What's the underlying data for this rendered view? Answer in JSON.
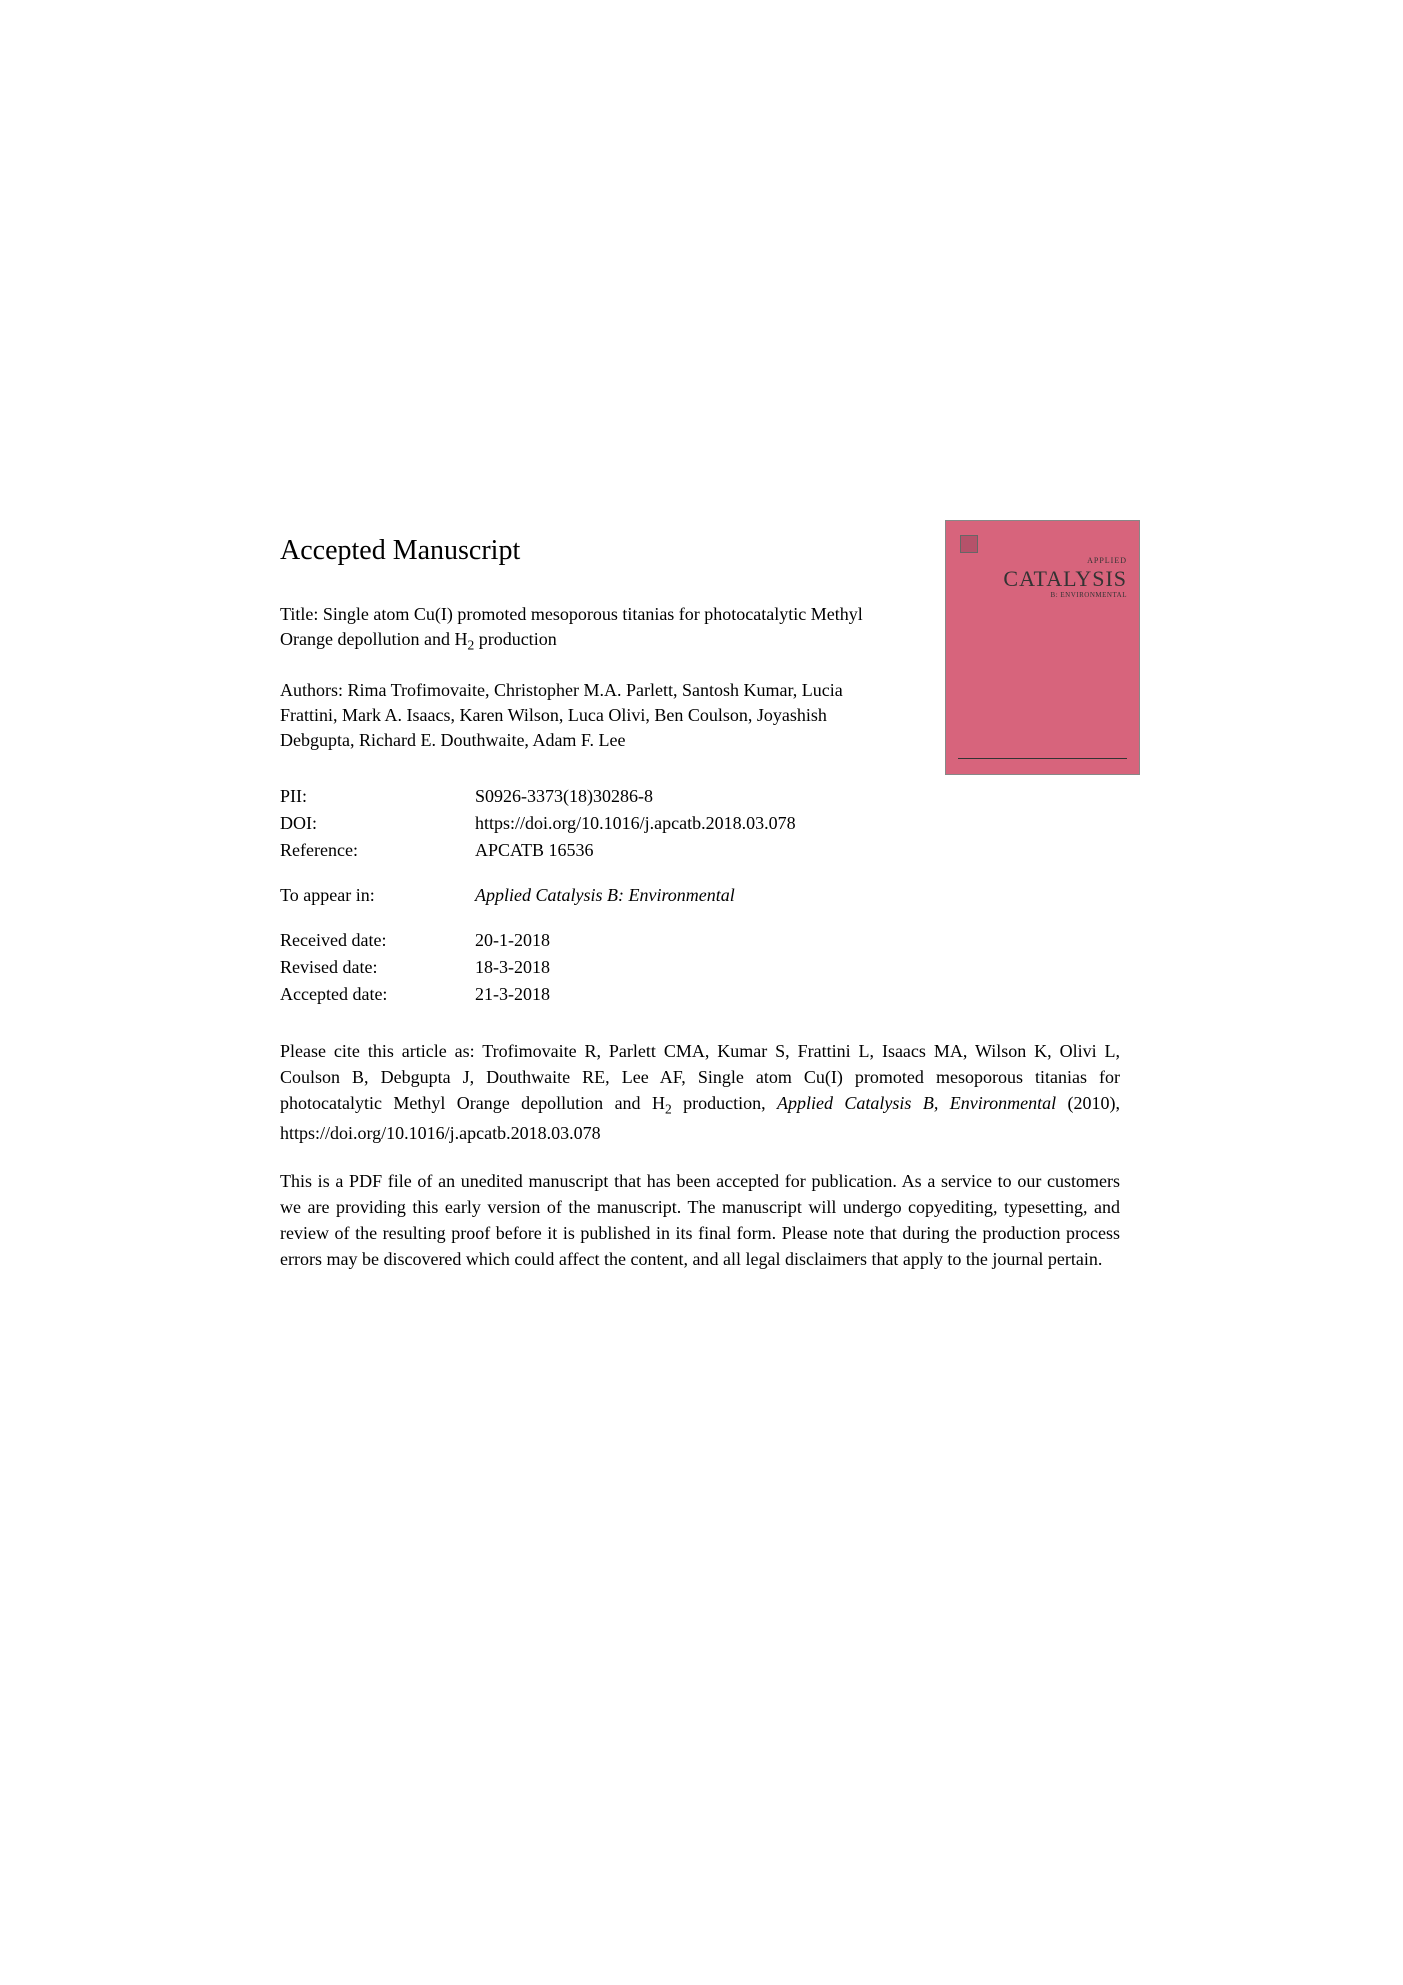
{
  "heading": "Accepted Manuscript",
  "title_label": "Title:",
  "title_text": "Single atom Cu(I) promoted mesoporous titanias for photocatalytic Methyl Orange depollution and H",
  "title_suffix": " production",
  "authors_label": "Authors:",
  "authors_text": "Rima Trofimovaite, Christopher M.A. Parlett, Santosh Kumar, Lucia Frattini, Mark A. Isaacs, Karen Wilson, Luca Olivi, Ben Coulson, Joyashish Debgupta, Richard E. Douthwaite, Adam F. Lee",
  "metadata": [
    {
      "label": "PII:",
      "value": "S0926-3373(18)30286-8"
    },
    {
      "label": "DOI:",
      "value": "https://doi.org/10.1016/j.apcatb.2018.03.078"
    },
    {
      "label": "Reference:",
      "value": "APCATB 16536"
    }
  ],
  "appear_label": "To appear in:",
  "appear_value": "Applied Catalysis B: Environmental",
  "dates": [
    {
      "label": "Received date:",
      "value": "20-1-2018"
    },
    {
      "label": "Revised date:",
      "value": "18-3-2018"
    },
    {
      "label": "Accepted date:",
      "value": "21-3-2018"
    }
  ],
  "citation_prefix": "Please cite this article as: Trofimovaite R, Parlett CMA, Kumar S, Frattini L, Isaacs MA, Wilson K, Olivi L, Coulson B, Debgupta J, Douthwaite RE, Lee AF, Single atom Cu(I) promoted mesoporous titanias for photocatalytic Methyl Orange depollution and H",
  "citation_mid": " production, ",
  "citation_journal": "Applied Catalysis B, Environmental",
  "citation_suffix": " (2010), https://doi.org/10.1016/j.apcatb.2018.03.078",
  "disclaimer": "This is a PDF file of an unedited manuscript that has been accepted for publication. As a service to our customers we are providing this early version of the manuscript. The manuscript will undergo copyediting, typesetting, and review of the resulting proof before it is published in its final form. Please note that during the production process errors may be discovered which could affect the content, and all legal disclaimers that apply to the journal pertain.",
  "cover": {
    "small_title": "APPLIED",
    "main_title": "CATALYSIS",
    "sub_title": "B: ENVIRONMENTAL"
  }
}
